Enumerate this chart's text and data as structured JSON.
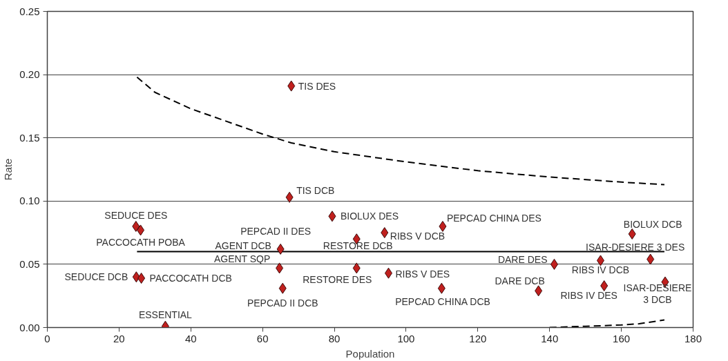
{
  "chart_data": {
    "type": "scatter",
    "xlabel": "Population",
    "ylabel": "Rate",
    "xlim": [
      0,
      180
    ],
    "ylim": [
      0,
      0.25
    ],
    "xticks": [
      0,
      20,
      40,
      60,
      80,
      100,
      120,
      140,
      160,
      180
    ],
    "yticks": [
      {
        "value": 0,
        "label": "0.00"
      },
      {
        "value": 0.05,
        "label": "0.05"
      },
      {
        "value": 0.1,
        "label": "0.10"
      },
      {
        "value": 0.15,
        "label": "0.15"
      },
      {
        "value": 0.2,
        "label": "0.20"
      },
      {
        "value": 0.25,
        "label": "0.25"
      }
    ],
    "grid": "y",
    "series": [
      {
        "type": "line",
        "marker": "none",
        "line_style": "dashed",
        "color": "#000000",
        "x": [
          25,
          30,
          40,
          50,
          60,
          68,
          80,
          100,
          120,
          140,
          160,
          172
        ],
        "values": [
          0.198,
          0.186,
          0.173,
          0.163,
          0.153,
          0.146,
          0.139,
          0.131,
          0.124,
          0.119,
          0.115,
          0.113
        ]
      },
      {
        "type": "line",
        "marker": "none",
        "line_style": "dashed",
        "color": "#000000",
        "x": [
          140,
          150,
          160,
          165,
          172
        ],
        "values": [
          0.0,
          0.001,
          0.002,
          0.003,
          0.006
        ]
      },
      {
        "type": "line",
        "marker": "none",
        "line_style": "solid",
        "color": "#000000",
        "x": [
          25,
          172
        ],
        "values": [
          0.06,
          0.06
        ]
      },
      {
        "marker": "diamond",
        "color": "#c0201e",
        "x": [
          24.7,
          26.0,
          24.8,
          26.2,
          32.9,
          67.5,
          68.0,
          79.4,
          65.0,
          64.7,
          65.6,
          86.2,
          86.2,
          94.0,
          95.1,
          110.2,
          109.9,
          163.0,
          168.1,
          172.2,
          141.3,
          136.9,
          154.2,
          155.2
        ],
        "values": [
          0.08,
          0.077,
          0.04,
          0.039,
          0.001,
          0.103,
          0.191,
          0.088,
          0.062,
          0.047,
          0.031,
          0.07,
          0.047,
          0.075,
          0.043,
          0.08,
          0.031,
          0.074,
          0.054,
          0.036,
          0.05,
          0.029,
          0.053,
          0.033
        ]
      }
    ],
    "annotations": [
      {
        "text": "SEDUCE DES",
        "x": 24.7,
        "y": 0.08
      },
      {
        "text": "PACCOCATH POBA",
        "x": 26.0,
        "y": 0.077
      },
      {
        "text": "SEDUCE DCB",
        "x": 24.8,
        "y": 0.04
      },
      {
        "text": "PACCOCATH DCB",
        "x": 26.2,
        "y": 0.039
      },
      {
        "text": "ESSENTIAL",
        "x": 32.9,
        "y": 0.001
      },
      {
        "text": "TIS DCB",
        "x": 67.5,
        "y": 0.103
      },
      {
        "text": "TIS DES",
        "x": 68.0,
        "y": 0.191
      },
      {
        "text": "BIOLUX DES",
        "x": 79.4,
        "y": 0.088
      },
      {
        "text": "PEPCAD II DES",
        "x": 65.0,
        "y": 0.062
      },
      {
        "text": "AGENT DCB",
        "x": 65.0,
        "y": 0.062
      },
      {
        "text": "AGENT SQP",
        "x": 64.7,
        "y": 0.047
      },
      {
        "text": "PEPCAD II DCB",
        "x": 65.6,
        "y": 0.031
      },
      {
        "text": "RESTORE DCB",
        "x": 86.2,
        "y": 0.07
      },
      {
        "text": "RESTORE DES",
        "x": 86.2,
        "y": 0.047
      },
      {
        "text": "RIBS V DCB",
        "x": 94.0,
        "y": 0.075
      },
      {
        "text": "RIBS V DES",
        "x": 95.1,
        "y": 0.043
      },
      {
        "text": "PEPCAD CHINA DES",
        "x": 110.2,
        "y": 0.08
      },
      {
        "text": "PEPCAD CHINA DCB",
        "x": 109.9,
        "y": 0.031
      },
      {
        "text": "BIOLUX DCB",
        "x": 163.0,
        "y": 0.074
      },
      {
        "text": "ISAR-DESIERE 3 DES",
        "x": 168.1,
        "y": 0.054
      },
      {
        "text": "ISAR-DESIERE 3 DCB",
        "x": 172.2,
        "y": 0.036
      },
      {
        "text": "DARE DES",
        "x": 141.3,
        "y": 0.05
      },
      {
        "text": "DARE DCB",
        "x": 136.9,
        "y": 0.029
      },
      {
        "text": "RIBS IV DCB",
        "x": 154.2,
        "y": 0.053
      },
      {
        "text": "RIBS IV DES",
        "x": 155.2,
        "y": 0.033
      }
    ]
  }
}
